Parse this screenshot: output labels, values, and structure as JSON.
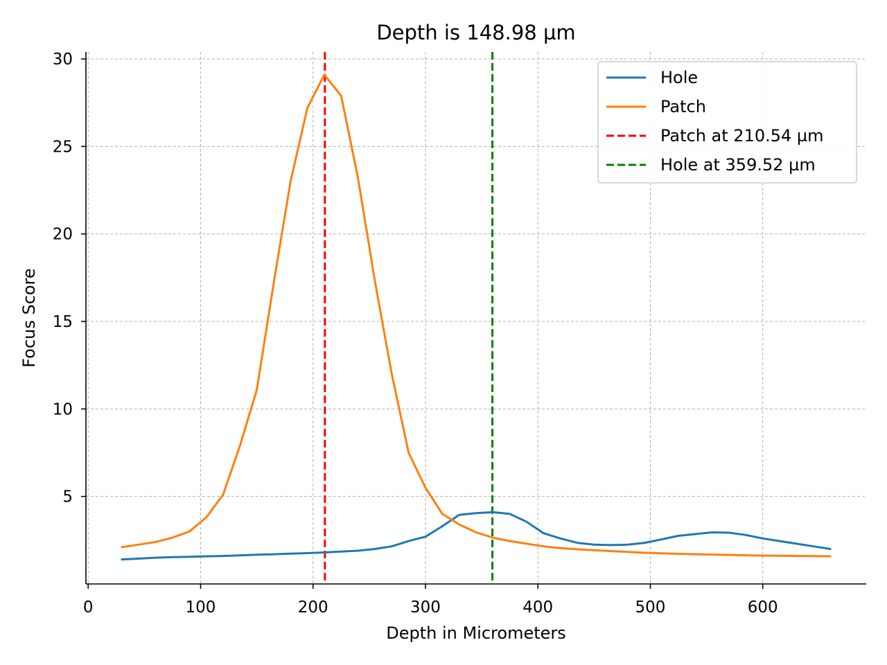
{
  "chart_data": {
    "type": "line",
    "title": "Depth is 148.98 µm",
    "xlabel": "Depth in Micrometers",
    "ylabel": "Focus Score",
    "xlim": [
      -2,
      692
    ],
    "ylim": [
      0,
      30.4
    ],
    "xticks": [
      0,
      100,
      200,
      300,
      400,
      500,
      600
    ],
    "yticks": [
      5,
      10,
      15,
      20,
      25,
      30
    ],
    "grid": true,
    "legend_position": "top-right",
    "series": [
      {
        "name": "Hole",
        "color": "#1f77b4",
        "style": "solid",
        "x": [
          30,
          45,
          60,
          75,
          90,
          105,
          120,
          135,
          150,
          165,
          180,
          195,
          210,
          225,
          240,
          255,
          270,
          285,
          300,
          315,
          330,
          345,
          360,
          375,
          390,
          405,
          420,
          435,
          450,
          465,
          480,
          495,
          510,
          525,
          540,
          555,
          570,
          585,
          600,
          615,
          630,
          645,
          660
        ],
        "y": [
          1.4,
          1.45,
          1.5,
          1.53,
          1.55,
          1.58,
          1.6,
          1.63,
          1.67,
          1.7,
          1.73,
          1.76,
          1.8,
          1.85,
          1.9,
          2.0,
          2.15,
          2.45,
          2.7,
          3.3,
          3.95,
          4.05,
          4.1,
          4.0,
          3.55,
          2.9,
          2.6,
          2.35,
          2.25,
          2.22,
          2.25,
          2.35,
          2.55,
          2.75,
          2.85,
          2.95,
          2.93,
          2.8,
          2.6,
          2.45,
          2.3,
          2.15,
          2.0
        ]
      },
      {
        "name": "Patch",
        "color": "#ff7f0e",
        "style": "solid",
        "x": [
          30,
          45,
          60,
          75,
          90,
          105,
          120,
          135,
          150,
          165,
          180,
          195,
          210,
          225,
          240,
          255,
          270,
          285,
          300,
          315,
          330,
          345,
          360,
          375,
          390,
          405,
          420,
          435,
          450,
          465,
          480,
          495,
          510,
          525,
          540,
          555,
          570,
          585,
          600,
          615,
          630,
          645,
          660
        ],
        "y": [
          2.1,
          2.25,
          2.4,
          2.65,
          3.0,
          3.8,
          5.1,
          7.9,
          11.1,
          17.2,
          23.0,
          27.2,
          29.1,
          27.9,
          23.2,
          17.3,
          12.0,
          7.5,
          5.5,
          4.0,
          3.4,
          2.95,
          2.65,
          2.45,
          2.3,
          2.15,
          2.05,
          1.98,
          1.93,
          1.88,
          1.83,
          1.78,
          1.75,
          1.72,
          1.7,
          1.68,
          1.66,
          1.64,
          1.62,
          1.61,
          1.6,
          1.59,
          1.58
        ]
      },
      {
        "name": "Patch at 210.54 µm",
        "color": "#ff0000",
        "style": "dashed",
        "vline_x": 210.54
      },
      {
        "name": "Hole at 359.52 µm",
        "color": "#008000",
        "style": "dashed",
        "vline_x": 359.52
      }
    ]
  }
}
